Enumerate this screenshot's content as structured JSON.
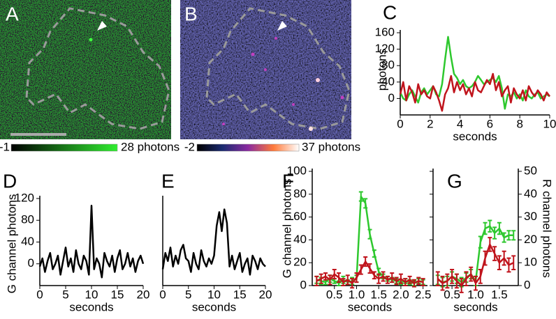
{
  "images": [
    {
      "panel": "A",
      "colorbar_ticks": [
        -1,
        {
          "value": 28,
          "label": "28 photons"
        }
      ]
    },
    {
      "panel": "B",
      "colorbar_ticks": [
        -2,
        {
          "value": 37,
          "label": "37 photons"
        }
      ]
    }
  ],
  "chart_data": [
    {
      "type": "line",
      "panel": "C",
      "x_label": "seconds",
      "y_label": "photons",
      "x": [
        0,
        0.2,
        0.4,
        0.6,
        0.8,
        1,
        1.2,
        1.4,
        1.6,
        1.8,
        2,
        2.2,
        2.4,
        2.6,
        2.8,
        3,
        3.2,
        3.4,
        3.6,
        3.8,
        4,
        4.2,
        4.4,
        4.6,
        4.8,
        5,
        5.2,
        5.4,
        5.6,
        5.8,
        6,
        6.2,
        6.4,
        6.6,
        6.8,
        7,
        7.2,
        7.4,
        7.6,
        7.8,
        8,
        8.2,
        8.4,
        8.6,
        8.8,
        9,
        9.2,
        9.4,
        9.6,
        9.8,
        10
      ],
      "series": [
        {
          "color": "#2ec82e",
          "values": [
            15,
            0,
            -5,
            10,
            20,
            5,
            -10,
            15,
            25,
            10,
            20,
            30,
            10,
            5,
            35,
            95,
            150,
            100,
            60,
            50,
            35,
            45,
            30,
            25,
            30,
            40,
            55,
            45,
            35,
            40,
            45,
            50,
            40,
            55,
            25,
            -25,
            10,
            5,
            15,
            0,
            10,
            -5,
            20,
            5,
            0,
            10,
            15,
            0,
            5,
            10,
            5
          ]
        },
        {
          "color": "#c0141c",
          "values": [
            10,
            40,
            -5,
            30,
            15,
            -10,
            35,
            10,
            20,
            5,
            0,
            30,
            15,
            -5,
            -30,
            10,
            25,
            55,
            15,
            40,
            20,
            35,
            10,
            25,
            5,
            40,
            20,
            15,
            30,
            45,
            35,
            60,
            20,
            40,
            5,
            20,
            30,
            -10,
            25,
            10,
            0,
            20,
            -5,
            30,
            15,
            5,
            20,
            10,
            -5,
            15,
            5
          ]
        }
      ],
      "xlim": [
        0,
        10
      ],
      "xticks": [
        0,
        2,
        4,
        6,
        8,
        10
      ],
      "ylim": [
        -40,
        160
      ],
      "yticks": [
        0,
        40,
        80,
        120,
        160
      ]
    },
    {
      "type": "line",
      "panel": "D",
      "x_label": "seconds",
      "y_label": "G channel photons",
      "x": [
        0,
        0.5,
        1,
        1.5,
        2,
        2.5,
        3,
        3.5,
        4,
        4.5,
        5,
        5.5,
        6,
        6.5,
        7,
        7.5,
        8,
        8.5,
        9,
        9.5,
        10,
        10.5,
        11,
        11.5,
        12,
        12.5,
        13,
        13.5,
        14,
        14.5,
        15,
        15.5,
        16,
        16.5,
        17,
        17.5,
        18,
        18.5,
        19,
        19.5,
        20
      ],
      "series": [
        {
          "color": "#000000",
          "values": [
            -5,
            10,
            -15,
            5,
            20,
            -10,
            0,
            15,
            -20,
            5,
            30,
            -5,
            10,
            -15,
            25,
            0,
            -10,
            15,
            5,
            -20,
            107,
            -10,
            10,
            0,
            -25,
            20,
            5,
            -5,
            15,
            -15,
            10,
            25,
            -10,
            0,
            20,
            -5,
            10,
            -15,
            5,
            15,
            0
          ]
        }
      ],
      "xlim": [
        0,
        20
      ],
      "xticks": [
        0,
        5,
        10,
        15,
        20
      ],
      "ylim": [
        -40,
        120
      ],
      "yticks": [
        0,
        40,
        80,
        120
      ]
    },
    {
      "type": "line",
      "panel": "E",
      "x_label": "seconds",
      "x": [
        0,
        0.5,
        1,
        1.5,
        2,
        2.5,
        3,
        3.5,
        4,
        4.5,
        5,
        5.5,
        6,
        6.5,
        7,
        7.5,
        8,
        8.5,
        9,
        9.5,
        10,
        10.5,
        11,
        11.5,
        12,
        12.5,
        13,
        13.5,
        14,
        14.5,
        15,
        15.5,
        16,
        16.5,
        17,
        17.5,
        18,
        18.5,
        19,
        19.5,
        20
      ],
      "series": [
        {
          "color": "#000000",
          "values": [
            -10,
            20,
            5,
            30,
            -5,
            15,
            0,
            25,
            35,
            10,
            5,
            -15,
            20,
            0,
            -10,
            25,
            5,
            -5,
            10,
            0,
            15,
            70,
            95,
            60,
            100,
            75,
            -5,
            15,
            -10,
            5,
            20,
            -15,
            0,
            10,
            -20,
            15,
            5,
            -10,
            10,
            0,
            -5
          ]
        }
      ],
      "xlim": [
        0,
        20
      ],
      "xticks": [
        0,
        5,
        10,
        15,
        20
      ],
      "ylim": [
        -40,
        120
      ]
    },
    {
      "type": "line",
      "panel": "F",
      "x_label": "seconds",
      "y_label": "G channel photons",
      "x": [
        0.1,
        0.2,
        0.3,
        0.4,
        0.5,
        0.6,
        0.7,
        0.8,
        0.9,
        1,
        1.1,
        1.2,
        1.3,
        1.4,
        1.5,
        1.6,
        1.7,
        1.8,
        1.9,
        2,
        2.1,
        2.2,
        2.3,
        2.4,
        2.5
      ],
      "series": [
        {
          "color": "#2ec82e",
          "values": [
            5,
            4,
            3,
            6,
            4,
            2,
            5,
            3,
            4,
            6,
            78,
            72,
            45,
            28,
            12,
            8,
            6,
            5,
            4,
            3,
            4,
            3,
            2,
            4,
            3
          ],
          "errors": [
            3,
            3,
            2,
            3,
            2,
            2,
            3,
            2,
            3,
            3,
            4,
            4,
            4,
            3,
            3,
            2,
            2,
            2,
            2,
            2,
            2,
            2,
            2,
            2,
            2
          ]
        },
        {
          "color": "#c0141c",
          "values": [
            4,
            6,
            8,
            5,
            10,
            7,
            3,
            5,
            2,
            7,
            14,
            21,
            15,
            9,
            6,
            8,
            5,
            7,
            4,
            6,
            3,
            5,
            2,
            4,
            3
          ],
          "errors": [
            4,
            4,
            3,
            4,
            4,
            4,
            3,
            4,
            4,
            4,
            4,
            4,
            4,
            3,
            4,
            4,
            3,
            4,
            3,
            4,
            3,
            3,
            3,
            3,
            3
          ]
        }
      ],
      "xlim": [
        0,
        2.6
      ],
      "xticks": [
        0.5,
        {
          "value": 1,
          "label": "1.0"
        },
        1.5,
        {
          "value": 2,
          "label": "2.0"
        },
        2.5
      ],
      "ylim": [
        0,
        100
      ],
      "yticks": [
        0,
        20,
        40,
        60,
        80,
        100
      ]
    },
    {
      "type": "line",
      "panel": "G",
      "x_label": "seconds",
      "y2_label": "R channel photons",
      "x": [
        0.2,
        0.3,
        0.4,
        0.5,
        0.6,
        0.7,
        0.8,
        0.9,
        1,
        1.1,
        1.2,
        1.3,
        1.4,
        1.5,
        1.6,
        1.7,
        1.8
      ],
      "series": [
        {
          "color": "#2ec82e",
          "values": [
            5,
            3,
            4,
            8,
            6,
            3,
            7,
            10,
            4,
            38,
            50,
            52,
            46,
            50,
            42,
            44,
            44
          ],
          "errors": [
            4,
            4,
            4,
            4,
            4,
            4,
            4,
            4,
            4,
            5,
            5,
            5,
            5,
            5,
            4,
            4,
            4
          ]
        },
        {
          "color": "#c0141c",
          "axis": "y2",
          "values": [
            3,
            1,
            2,
            4,
            2,
            0,
            3,
            5,
            1,
            4,
            12,
            18,
            14,
            10,
            12,
            9,
            10
          ],
          "errors": [
            3,
            3,
            3,
            3,
            3,
            3,
            3,
            3,
            3,
            3,
            3,
            3,
            3,
            3,
            3,
            3,
            3
          ]
        }
      ],
      "xlim": [
        0.1,
        1.9
      ],
      "xticks": [
        0.5,
        {
          "value": 1,
          "label": "1.0"
        },
        1.5
      ],
      "ylim": [
        0,
        100
      ],
      "yticks": [
        0,
        20,
        40,
        60,
        80,
        100
      ],
      "ytick_labels": false,
      "y2lim": [
        0,
        50
      ],
      "y2ticks": [
        0,
        10,
        20,
        30,
        40,
        50
      ]
    }
  ]
}
